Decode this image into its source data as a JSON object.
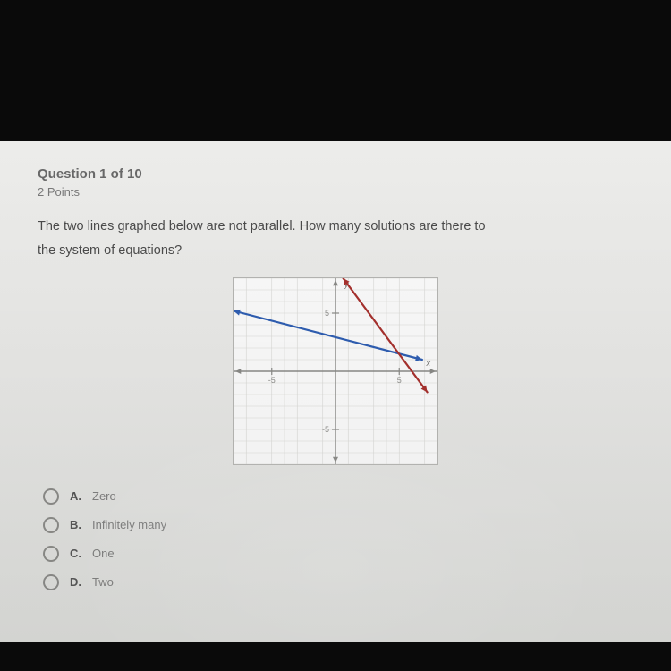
{
  "question": {
    "header": "Question 1 of 10",
    "points": "2 Points",
    "text_line1": "The two lines graphed below are not parallel. How many solutions are there to",
    "text_line2": "the system of equations?"
  },
  "answers": [
    {
      "letter": "A.",
      "text": "Zero"
    },
    {
      "letter": "B.",
      "text": "Infinitely many"
    },
    {
      "letter": "C.",
      "text": "One"
    },
    {
      "letter": "D.",
      "text": "Two"
    }
  ],
  "graph": {
    "type": "line",
    "background_color": "#fcfcfc",
    "border_color": "#b7b7b4",
    "grid_color": "#d9d9d6",
    "axis_color": "#8a8a87",
    "tick_color": "#8a8a87",
    "tick_label_color": "#8f8f8c",
    "tick_fontsize": 9,
    "xlim": [
      -8,
      8
    ],
    "ylim": [
      -8,
      8
    ],
    "xtick_step": 1,
    "ytick_step": 1,
    "major_tick_labels_x": [
      -5,
      5
    ],
    "major_tick_labels_y": [
      -5,
      5
    ],
    "axis_label_y": "y",
    "axis_label_x": "x",
    "axis_label_color": "#6f6f6c",
    "axis_label_fontsize": 9,
    "arrowheads": true,
    "lines": [
      {
        "name": "blue-line",
        "color": "#2f5fb3",
        "width": 2.2,
        "arrowheads": "both",
        "points": [
          [
            -8,
            5.2
          ],
          [
            6.8,
            1.0
          ]
        ]
      },
      {
        "name": "red-line",
        "color": "#a8312e",
        "width": 2.2,
        "arrowheads": "both",
        "points": [
          [
            0.6,
            8
          ],
          [
            7.2,
            -1.8
          ]
        ]
      }
    ]
  }
}
